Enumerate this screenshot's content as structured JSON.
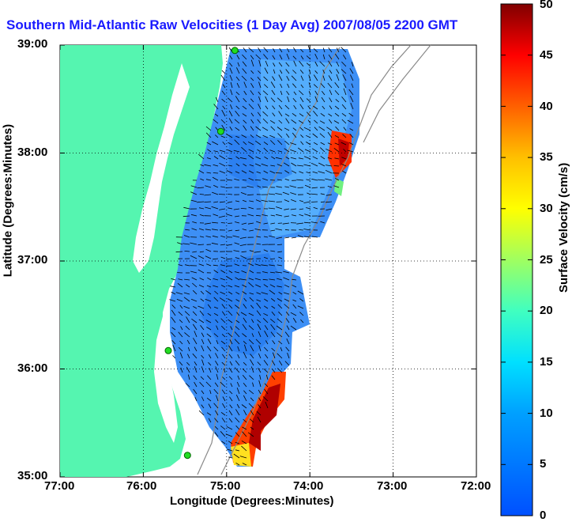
{
  "title": "Southern Mid-Atlantic Raw Velocities (1 Day Avg) 2007/08/05 2200 GMT",
  "xlabel": "Longitude (Degrees:Minutes)",
  "ylabel": "Latitude (Degrees:Minutes)",
  "xticks": [
    "77:00",
    "76:00",
    "75:00",
    "74:00",
    "73:00",
    "72:00"
  ],
  "yticks": [
    "39:00",
    "38:00",
    "37:00",
    "36:00",
    "35:00"
  ],
  "colorbar": {
    "label": "Surface Velocity (cm/s)",
    "ticks": [
      "0",
      "5",
      "10",
      "15",
      "20",
      "25",
      "30",
      "35",
      "40",
      "45",
      "50"
    ],
    "min": 0,
    "max": 50
  },
  "colors": {
    "land": "#55f5b0",
    "water_low": "#1f7fff",
    "water_mid": "#4aa8ff",
    "high": "#d00000",
    "title": "#1a1aff",
    "station": "#22dd22"
  },
  "stations": [
    {
      "name": "station-1",
      "lon": -74.9,
      "lat": 38.95
    },
    {
      "name": "station-2",
      "lon": -75.07,
      "lat": 38.2
    },
    {
      "name": "station-3",
      "lon": -75.7,
      "lat": 36.17
    },
    {
      "name": "station-4",
      "lon": -75.47,
      "lat": 35.2
    }
  ]
}
